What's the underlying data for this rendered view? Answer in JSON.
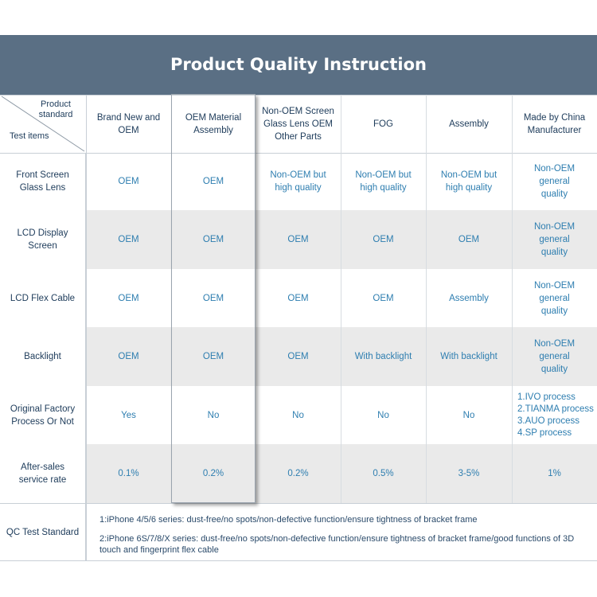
{
  "title": "Product Quality Instruction",
  "header": {
    "corner_top": "Product standard",
    "corner_bottom": "Test items",
    "columns": [
      "Brand New and OEM",
      "OEM Material Assembly",
      "Non-OEM Screen Glass Lens OEM Other Parts",
      "FOG",
      "Assembly",
      "Made by China Manufacturer"
    ]
  },
  "rows": [
    {
      "label": "Front Screen Glass Lens",
      "values": [
        "OEM",
        "OEM",
        "Non-OEM but high quality",
        "Non-OEM but high quality",
        "Non-OEM but high quality",
        "Non-OEM general quality"
      ]
    },
    {
      "label": "LCD Display Screen",
      "values": [
        "OEM",
        "OEM",
        "OEM",
        "OEM",
        "OEM",
        "Non-OEM general quality"
      ]
    },
    {
      "label": "LCD Flex Cable",
      "values": [
        "OEM",
        "OEM",
        "OEM",
        "OEM",
        "Assembly",
        "Non-OEM general quality"
      ]
    },
    {
      "label": "Backlight",
      "values": [
        "OEM",
        "OEM",
        "OEM",
        "With backlight",
        "With backlight",
        "Non-OEM general quality"
      ]
    },
    {
      "label": "Original Factory Process Or Not",
      "values": [
        "Yes",
        "No",
        "No",
        "No",
        "No",
        ""
      ],
      "process_list": [
        "1.IVO process",
        "2.TIANMA process",
        "3.AUO process",
        "4.SP process"
      ]
    },
    {
      "label": "After-sales service rate",
      "values": [
        "0.1%",
        "0.2%",
        "0.2%",
        "0.5%",
        "3-5%",
        "1%"
      ]
    }
  ],
  "qc": {
    "label": "QC Test Standard",
    "line1": "1:iPhone 4/5/6 series: dust-free/no spots/non-defective function/ensure tightness of bracket frame",
    "line2": "2:iPhone 6S/7/8/X series: dust-free/no spots/non-defective function/ensure tightness of bracket frame/good functions of 3D touch and fingerprint flex cable"
  },
  "colors": {
    "banner": "#5a6f84",
    "value_text": "#2e7eb0",
    "label_text": "#1d3b5a",
    "row_alt": "#eaeaea"
  }
}
